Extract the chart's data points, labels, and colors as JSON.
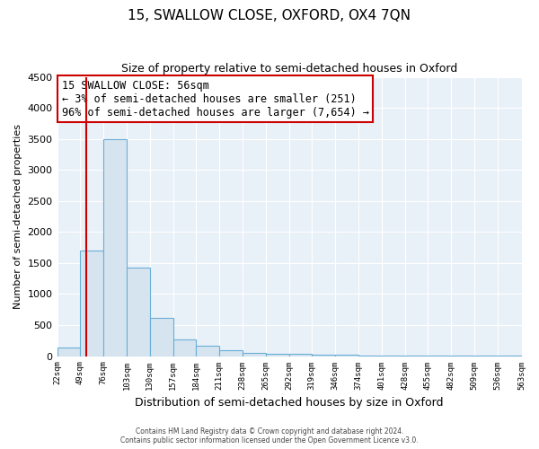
{
  "title": "15, SWALLOW CLOSE, OXFORD, OX4 7QN",
  "subtitle": "Size of property relative to semi-detached houses in Oxford",
  "xlabel": "Distribution of semi-detached houses by size in Oxford",
  "ylabel": "Number of semi-detached properties",
  "bin_edges": [
    22,
    49,
    76,
    103,
    130,
    157,
    184,
    211,
    238,
    265,
    292,
    319,
    346,
    373,
    400,
    427,
    454,
    481,
    508,
    535,
    563
  ],
  "bar_heights": [
    140,
    1700,
    3500,
    1420,
    620,
    270,
    165,
    95,
    50,
    40,
    30,
    25,
    20,
    15,
    10,
    8,
    6,
    5,
    4,
    3
  ],
  "bar_color": "#d6e4f0",
  "bar_edgecolor": "#6aaed6",
  "property_line_x": 56,
  "property_line_color": "#cc0000",
  "ylim": [
    0,
    4500
  ],
  "annotation_title": "15 SWALLOW CLOSE: 56sqm",
  "annotation_line1": "← 3% of semi-detached houses are smaller (251)",
  "annotation_line2": "96% of semi-detached houses are larger (7,654) →",
  "annotation_box_facecolor": "#ffffff",
  "annotation_box_edgecolor": "#cc0000",
  "footer_line1": "Contains HM Land Registry data © Crown copyright and database right 2024.",
  "footer_line2": "Contains public sector information licensed under the Open Government Licence v3.0.",
  "background_color": "#ffffff",
  "plot_bg_color": "#e8f0f8",
  "grid_color": "#ffffff",
  "tick_labels": [
    "22sqm",
    "49sqm",
    "76sqm",
    "103sqm",
    "130sqm",
    "157sqm",
    "184sqm",
    "211sqm",
    "238sqm",
    "265sqm",
    "292sqm",
    "319sqm",
    "346sqm",
    "374sqm",
    "401sqm",
    "428sqm",
    "455sqm",
    "482sqm",
    "509sqm",
    "536sqm",
    "563sqm"
  ]
}
